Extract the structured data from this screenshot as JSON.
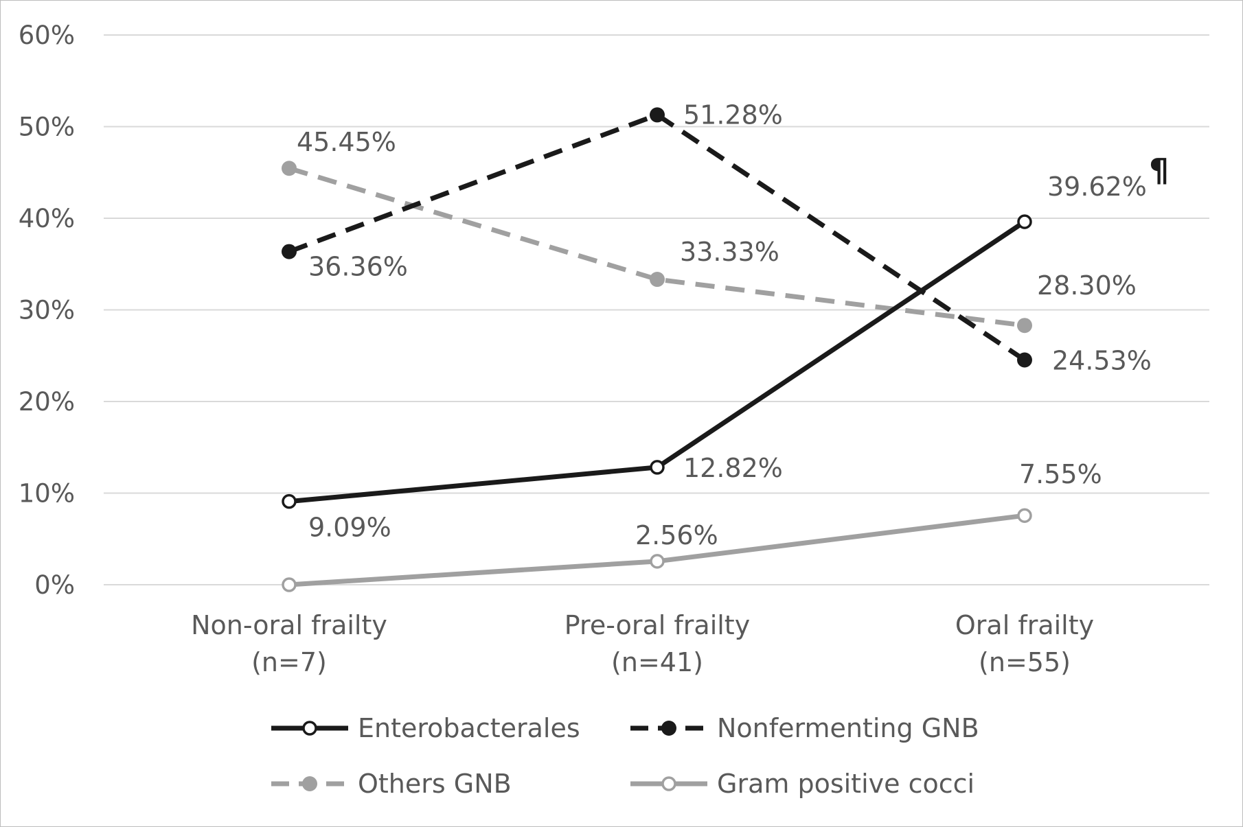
{
  "chart_data": {
    "type": "line",
    "title": "",
    "xlabel": "",
    "ylabel": "",
    "categories": [
      [
        "Non-oral frailty",
        "(n=7)"
      ],
      [
        "Pre-oral frailty",
        "(n=41)"
      ],
      [
        "Oral frailty",
        "(n=55)"
      ]
    ],
    "ylim": [
      0,
      60
    ],
    "y_ticks": [
      "0%",
      "10%",
      "20%",
      "30%",
      "40%",
      "50%",
      "60%"
    ],
    "grid": true,
    "legend_position": "bottom",
    "annotation": "¶",
    "series": [
      {
        "name": "Enterobacterales",
        "values": [
          9.09,
          12.82,
          39.62
        ],
        "labels": [
          "9.09%",
          "12.82%",
          "39.62%"
        ],
        "color": "#1a1a1a",
        "line_style": "solid",
        "marker": "open-circle"
      },
      {
        "name": "Nonfermenting  GNB",
        "values": [
          36.36,
          51.28,
          24.53
        ],
        "labels": [
          "36.36%",
          "51.28%",
          "24.53%"
        ],
        "color": "#1a1a1a",
        "line_style": "dashed",
        "marker": "filled-circle"
      },
      {
        "name": "Others GNB",
        "values": [
          45.45,
          33.33,
          28.3
        ],
        "labels": [
          "45.45%",
          "33.33%",
          "28.30%"
        ],
        "color": "#a0a0a0",
        "line_style": "dashed",
        "marker": "filled-circle"
      },
      {
        "name": "Gram positive cocci",
        "values": [
          0.0,
          2.56,
          7.55
        ],
        "labels": [
          "",
          "2.56%",
          "7.55%"
        ],
        "color": "#a0a0a0",
        "line_style": "solid",
        "marker": "open-circle"
      }
    ]
  }
}
